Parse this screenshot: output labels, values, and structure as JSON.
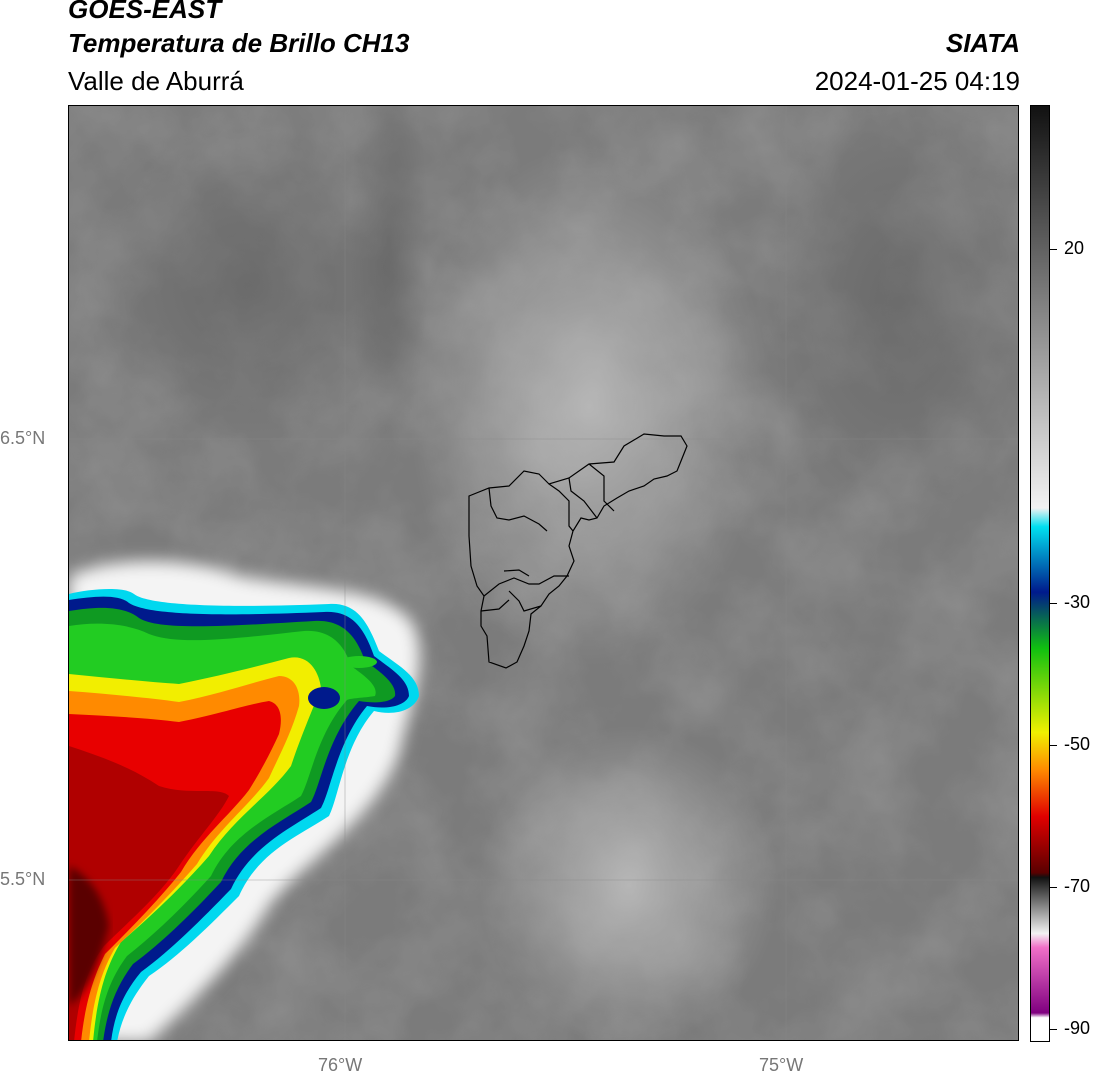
{
  "header": {
    "satellite": "GOES-EAST",
    "product": "Temperatura de Brillo CH13",
    "region": "Valle de Aburrá",
    "organization": "SIATA",
    "datetime": "2024-01-25 04:19"
  },
  "map": {
    "lat_labels": [
      "6.5°N",
      "5.5°N"
    ],
    "lon_labels": [
      "76°W",
      "75°W"
    ]
  },
  "colorbar": {
    "tick_labels": [
      "20",
      "-30",
      "-50",
      "-70",
      "-90"
    ],
    "colors": {
      "warm_dark": "#111111",
      "mid_gray": "#7a7a7a",
      "light_gray": "#f2f2f2",
      "cyan": "#00e0f0",
      "dark_blue": "#001a8c",
      "green": "#10c010",
      "yellow": "#f0f000",
      "orange": "#ff8a00",
      "red": "#e00000",
      "dark_red": "#5a0000",
      "pink": "#f070c8",
      "purple": "#800080"
    }
  }
}
